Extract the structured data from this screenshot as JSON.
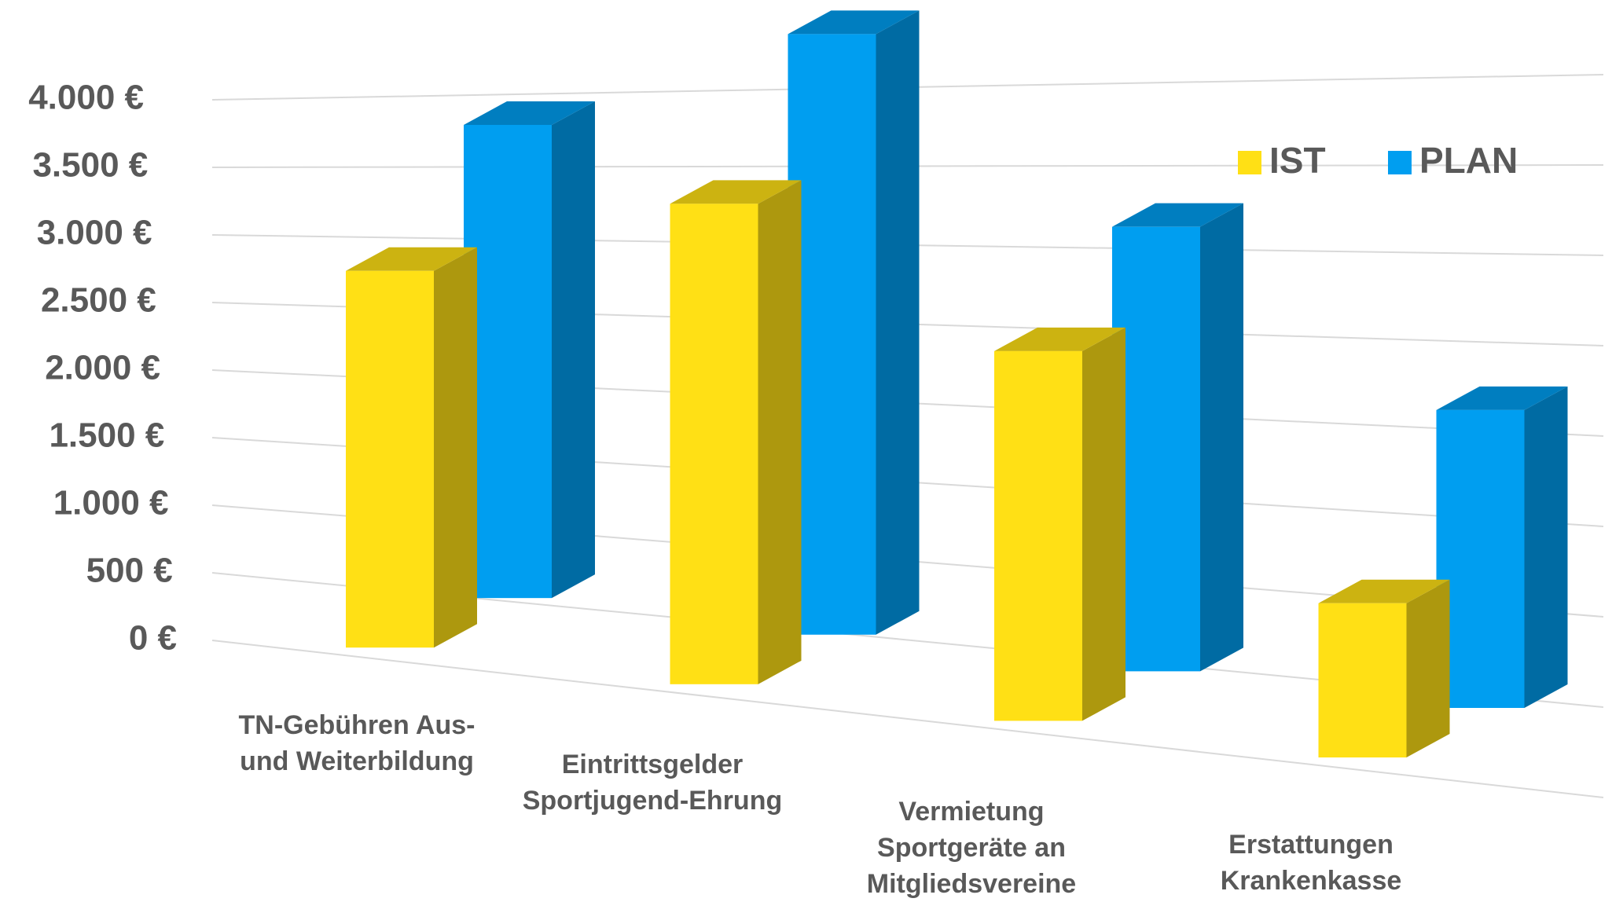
{
  "chart_data": {
    "type": "bar3d",
    "categories": [
      "TN-Gebühren Aus- und Weiterbildung",
      "Eintrittsgelder Sportjugend-Ehrung",
      "Vermietung Sportgeräte an Mitgliedsvereine",
      "Erstattungen Krankenkasse"
    ],
    "series": [
      {
        "name": "IST",
        "color": "#FFE015",
        "values": [
          2700,
          3200,
          2300,
          900
        ]
      },
      {
        "name": "PLAN",
        "color": "#009EF0",
        "values": [
          3300,
          3900,
          2700,
          1700
        ]
      }
    ],
    "ylim": [
      0,
      4000
    ],
    "yticks": [
      {
        "value": 0,
        "label": "0 €"
      },
      {
        "value": 500,
        "label": "500 €"
      },
      {
        "value": 1000,
        "label": "1.000 €"
      },
      {
        "value": 1500,
        "label": "1.500 €"
      },
      {
        "value": 2000,
        "label": "2.000 €"
      },
      {
        "value": 2500,
        "label": "2.500 €"
      },
      {
        "value": 3000,
        "label": "3.000 €"
      },
      {
        "value": 3500,
        "label": "3.500 €"
      },
      {
        "value": 4000,
        "label": "4.000 €"
      }
    ],
    "grid": true
  }
}
